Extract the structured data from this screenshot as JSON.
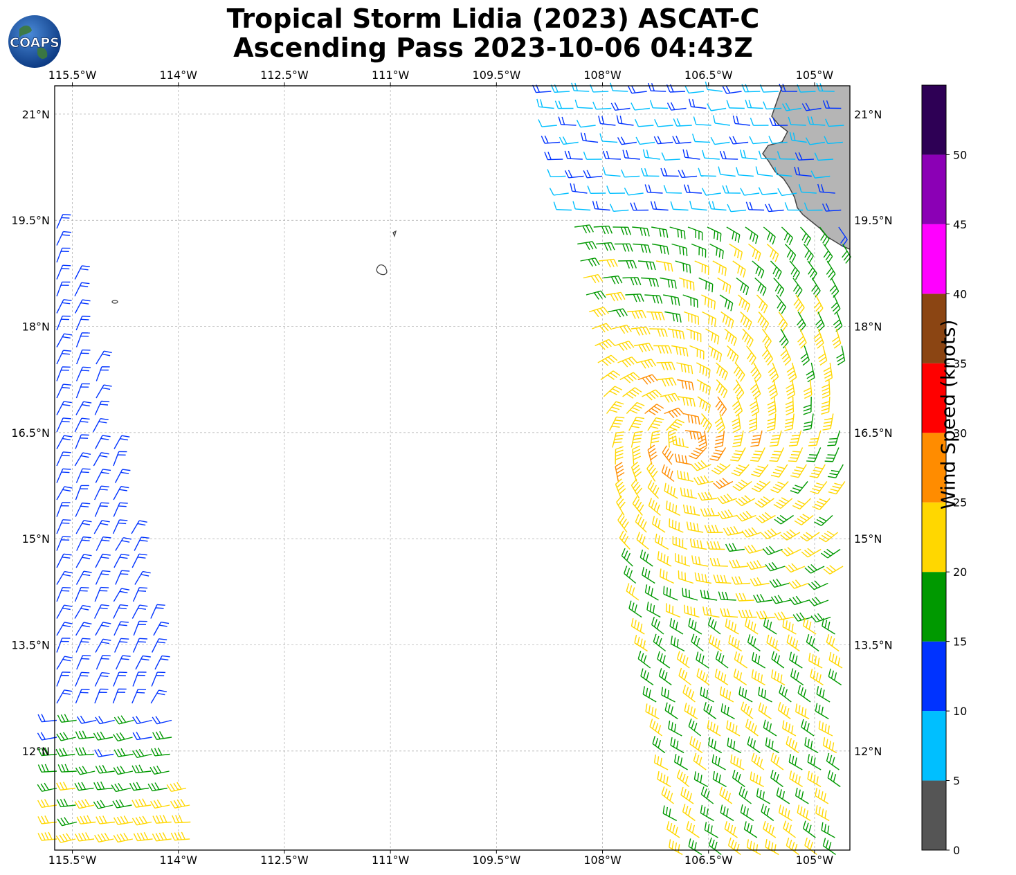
{
  "title": {
    "line1": "Tropical Storm Lidia (2023) ASCAT-C",
    "line2": "Ascending Pass 2023-10-06 04:43Z"
  },
  "logo": {
    "text": "COAPS",
    "icon": "globe-logo-icon"
  },
  "map": {
    "lon_ticks": [
      "115.5°W",
      "114°W",
      "112.5°W",
      "111°W",
      "109.5°W",
      "108°W",
      "106.5°W",
      "105°W"
    ],
    "lon_values": [
      -115.5,
      -114,
      -112.5,
      -111,
      -109.5,
      -108,
      -106.5,
      -105
    ],
    "lat_ticks": [
      "21°N",
      "19.5°N",
      "18°N",
      "16.5°N",
      "15°N",
      "13.5°N",
      "12°N"
    ],
    "lat_values": [
      21,
      19.5,
      18,
      16.5,
      15,
      13.5,
      12
    ],
    "extent": {
      "lon_min": -115.75,
      "lon_max": -104.5,
      "lat_min": 10.6,
      "lat_max": 21.4
    },
    "grid": true,
    "swaths": [
      {
        "name": "west",
        "lon_range": [
          -115.75,
          -113.5
        ],
        "lat_range": [
          10.6,
          19.4
        ]
      },
      {
        "name": "east",
        "lon_range": [
          -108.7,
          -104.5
        ],
        "lat_range": [
          10.6,
          21.4
        ]
      }
    ],
    "storm_center_approx": {
      "lon": -106.8,
      "lat": 16.4
    },
    "land": "Mexico coastline (upper right), Revillagigedo islands"
  },
  "colorbar": {
    "label": "Wind Speed (knots)",
    "ticks": [
      "0",
      "5",
      "10",
      "15",
      "20",
      "25",
      "30",
      "35",
      "40",
      "45",
      "50"
    ],
    "bins": [
      {
        "range": [
          0,
          5
        ],
        "color": "#555555"
      },
      {
        "range": [
          5,
          10
        ],
        "color": "#00bfff"
      },
      {
        "range": [
          10,
          15
        ],
        "color": "#0033ff"
      },
      {
        "range": [
          15,
          20
        ],
        "color": "#009900"
      },
      {
        "range": [
          20,
          25
        ],
        "color": "#ffd700"
      },
      {
        "range": [
          25,
          30
        ],
        "color": "#ff8c00"
      },
      {
        "range": [
          30,
          35
        ],
        "color": "#ff0000"
      },
      {
        "range": [
          35,
          40
        ],
        "color": "#8b4513"
      },
      {
        "range": [
          40,
          45
        ],
        "color": "#ff00ff"
      },
      {
        "range": [
          45,
          50
        ],
        "color": "#8b00b5"
      },
      {
        "range": [
          50,
          55
        ],
        "color": "#2e0055"
      }
    ]
  }
}
